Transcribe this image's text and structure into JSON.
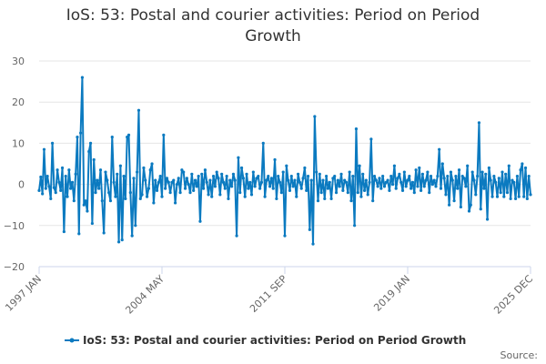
{
  "chart_data": {
    "type": "line",
    "title": "IoS: 53: Postal and courier activities: Period on Period Growth",
    "xlabel": "",
    "ylabel": "",
    "ylim": [
      -20,
      30
    ],
    "y_ticks": [
      "30",
      "20",
      "10",
      "0",
      "−10",
      "−20"
    ],
    "x_ticks": [
      "1997 JAN",
      "2004 MAY",
      "2011 SEP",
      "2019 JAN",
      "2025 DEC"
    ],
    "x_start": "1997-01",
    "x_end": "2025-12",
    "grid": true,
    "legend_position": "bottom",
    "source_label": "Source:",
    "series": [
      {
        "name": "IoS: 53: Postal and courier activities: Period on Period Growth",
        "color": "#0b7ac0",
        "values": [
          -1.5,
          1.8,
          -2.3,
          8.5,
          -1.0,
          2.0,
          -0.5,
          -3.5,
          10.0,
          -0.8,
          -2.0,
          3.5,
          0.5,
          -1.5,
          4.0,
          -11.5,
          2.0,
          -3.0,
          3.5,
          -1.0,
          0.5,
          -4.0,
          2.5,
          11.5,
          -12.0,
          12.5,
          26.0,
          -5.0,
          -4.0,
          -6.5,
          8.0,
          10.0,
          -9.5,
          6.0,
          -2.0,
          1.0,
          -1.0,
          3.5,
          -4.0,
          -11.8,
          3.0,
          1.0,
          -2.0,
          -4.0,
          11.5,
          0.5,
          -3.0,
          2.5,
          -14.0,
          4.5,
          -13.5,
          2.0,
          -3.5,
          11.5,
          12.0,
          -2.0,
          -12.5,
          1.5,
          -10.0,
          3.0,
          18.0,
          -3.5,
          -2.5,
          4.0,
          1.0,
          -3.0,
          -1.0,
          3.5,
          5.0,
          -4.5,
          1.0,
          -1.5,
          0.5,
          2.0,
          -3.0,
          12.0,
          -1.0,
          1.5,
          0.5,
          -2.0,
          0.5,
          1.0,
          -4.5,
          0.0,
          1.5,
          -2.0,
          3.5,
          3.0,
          -1.0,
          1.5,
          0.0,
          -2.0,
          2.5,
          -1.5,
          1.0,
          -0.5,
          2.0,
          -9.0,
          2.5,
          -1.0,
          3.5,
          0.5,
          -2.5,
          1.0,
          -3.0,
          2.0,
          -0.5,
          3.0,
          1.5,
          -2.5,
          2.5,
          0.5,
          -1.0,
          2.0,
          -3.5,
          1.0,
          -0.5,
          2.5,
          1.0,
          -12.5,
          6.5,
          -2.0,
          4.0,
          1.5,
          -3.0,
          2.5,
          -1.0,
          0.5,
          -2.5,
          3.0,
          -0.5,
          1.5,
          2.0,
          -1.0,
          0.5,
          10.0,
          -3.0,
          1.0,
          2.0,
          -0.5,
          1.5,
          -1.0,
          6.0,
          -3.5,
          2.0,
          0.5,
          -2.0,
          3.0,
          -12.5,
          4.5,
          1.0,
          -1.5,
          2.0,
          -0.5,
          1.0,
          -3.0,
          2.5,
          0.5,
          -1.0,
          1.5,
          4.0,
          -1.5,
          2.0,
          -11.0,
          1.0,
          -14.5,
          16.5,
          3.0,
          -4.0,
          2.5,
          -2.0,
          1.0,
          -3.5,
          2.0,
          -1.0,
          0.5,
          -3.5,
          1.5,
          2.0,
          -2.0,
          1.0,
          -0.5,
          2.5,
          -1.5,
          1.0,
          0.5,
          -2.0,
          3.0,
          -4.0,
          2.0,
          -10.0,
          13.5,
          -2.0,
          4.5,
          -3.0,
          2.5,
          -1.5,
          1.0,
          -2.5,
          0.5,
          11.0,
          -4.0,
          2.0,
          1.0,
          -0.5,
          1.5,
          -1.0,
          2.0,
          -0.5,
          0.5,
          1.0,
          -1.5,
          2.0,
          0.0,
          4.5,
          -1.0,
          1.5,
          2.5,
          0.5,
          -1.5,
          3.0,
          -0.5,
          1.0,
          2.0,
          -1.0,
          0.5,
          -2.0,
          3.5,
          -0.5,
          4.0,
          -1.5,
          2.5,
          -0.5,
          1.0,
          3.0,
          -2.0,
          2.0,
          0.0,
          1.0,
          -0.5,
          2.0,
          8.5,
          -1.0,
          5.0,
          1.5,
          -2.5,
          2.0,
          -5.0,
          3.0,
          1.0,
          -4.0,
          2.0,
          -1.0,
          3.5,
          -5.5,
          2.0,
          1.5,
          -0.5,
          4.5,
          -6.5,
          -5.0,
          3.0,
          1.0,
          -2.5,
          2.0,
          15.0,
          -6.0,
          3.0,
          -1.0,
          2.5,
          -8.5,
          4.0,
          1.0,
          -3.0,
          2.0,
          0.5,
          -3.0,
          1.5,
          -2.0,
          3.0,
          -3.0,
          2.5,
          -2.0,
          4.5,
          -3.5,
          1.0,
          0.5,
          -3.5,
          2.0,
          -3.0,
          3.5,
          5.0,
          -3.0,
          4.0,
          -3.5,
          2.0,
          -2.5
        ]
      }
    ]
  }
}
